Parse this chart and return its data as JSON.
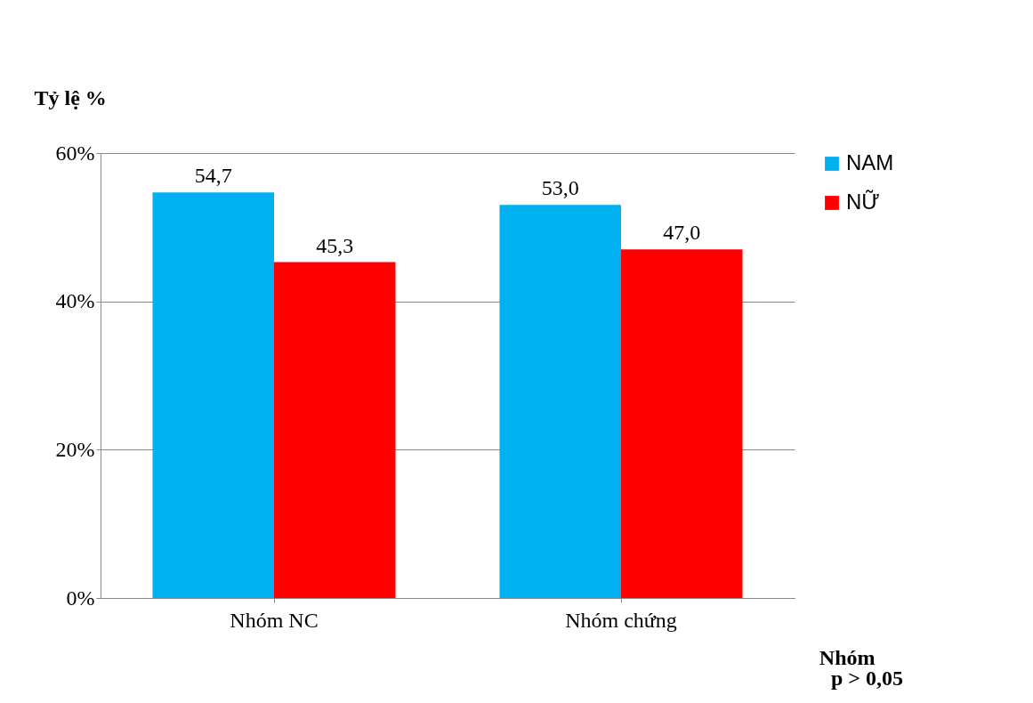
{
  "chart_data": {
    "type": "bar",
    "ylabel": "Tỷ lệ %",
    "xlabel": "Nhóm",
    "annotations": [
      "p > 0,05"
    ],
    "categories": [
      "Nhóm NC",
      "Nhóm chứng"
    ],
    "series": [
      {
        "name": "NAM",
        "color": "#00b0f0",
        "values": [
          54.7,
          53.0
        ],
        "value_labels": [
          "54,7",
          "53,0"
        ]
      },
      {
        "name": "NỮ",
        "color": "#ff0000",
        "values": [
          45.3,
          47.0
        ],
        "value_labels": [
          "45,3",
          "47,0"
        ]
      }
    ],
    "ylim": [
      0,
      60
    ],
    "yticks": [
      {
        "value": 0,
        "label": "0%"
      },
      {
        "value": 20,
        "label": "20%"
      },
      {
        "value": 40,
        "label": "40%"
      },
      {
        "value": 60,
        "label": "60%"
      }
    ],
    "grid": "y",
    "legend": "right"
  }
}
